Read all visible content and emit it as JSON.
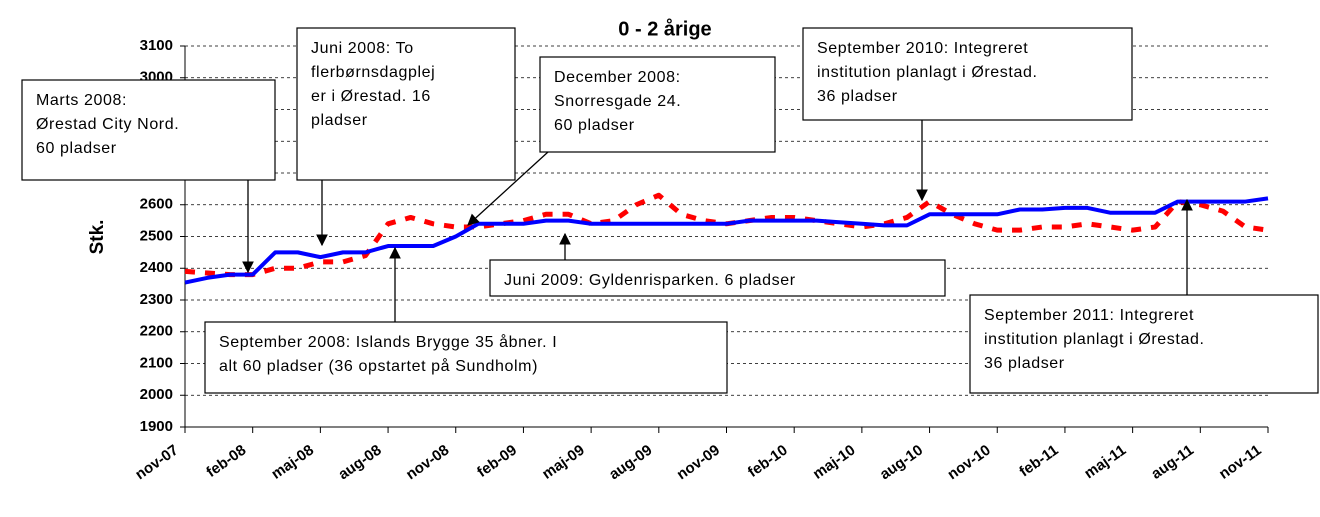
{
  "chart_data": {
    "type": "line",
    "title": "0 - 2 årige",
    "y_label": "Stk.",
    "categories": [
      "nov-07",
      null,
      null,
      "feb-08",
      null,
      null,
      "maj-08",
      null,
      null,
      "aug-08",
      null,
      null,
      "nov-08",
      null,
      null,
      "feb-09",
      null,
      null,
      "maj-09",
      null,
      null,
      "aug-09",
      null,
      null,
      "nov-09",
      null,
      null,
      "feb-10",
      null,
      null,
      "maj-10",
      null,
      null,
      "aug-10",
      null,
      null,
      "nov-10",
      null,
      null,
      "feb-11",
      null,
      null,
      "maj-11",
      null,
      null,
      "aug-11",
      null,
      null,
      "nov-11"
    ],
    "series": [
      {
        "color": "#ff0000",
        "dashed": true,
        "values": [
          2390,
          2385,
          2380,
          2380,
          2400,
          2400,
          2420,
          2420,
          2440,
          2540,
          2560,
          2540,
          2530,
          2530,
          2540,
          2550,
          2570,
          2570,
          2540,
          2550,
          2600,
          2630,
          2570,
          2550,
          2540,
          2550,
          2560,
          2560,
          2550,
          2540,
          2530,
          2540,
          2560,
          2610,
          2570,
          2540,
          2520,
          2520,
          2530,
          2530,
          2540,
          2530,
          2520,
          2530,
          2610,
          2600,
          2580,
          2530,
          2520
        ]
      },
      {
        "color": "#0000ff",
        "dashed": false,
        "values": [
          2355,
          2370,
          2380,
          2380,
          2450,
          2450,
          2435,
          2450,
          2450,
          2470,
          2470,
          2470,
          2500,
          2540,
          2540,
          2540,
          2550,
          2550,
          2540,
          2540,
          2540,
          2540,
          2540,
          2540,
          2540,
          2550,
          2550,
          2550,
          2550,
          2545,
          2540,
          2535,
          2535,
          2570,
          2570,
          2570,
          2570,
          2585,
          2585,
          2590,
          2590,
          2575,
          2575,
          2575,
          2610,
          2610,
          2610,
          2610,
          2620
        ]
      }
    ],
    "ylim": [
      1900,
      3100
    ],
    "yticks": [
      1900,
      2000,
      2100,
      2200,
      2300,
      2400,
      2500,
      2600,
      2700,
      2800,
      2900,
      3000,
      3100
    ],
    "grid": true,
    "annotations": [
      {
        "lines": [
          "Marts 2008:",
          "Ørestad City Nord.",
          "60 pladser"
        ]
      },
      {
        "lines": [
          "Juni 2008: To",
          "flerbørnsdagplej",
          "er i Ørestad. 16",
          "pladser"
        ]
      },
      {
        "lines": [
          "December 2008:",
          "Snorresgade 24.",
          "60 pladser"
        ]
      },
      {
        "lines": [
          "September 2010: Integreret",
          "institution planlagt i Ørestad.",
          "36 pladser"
        ]
      },
      {
        "lines": [
          "Juni 2009: Gyldenrisparken. 6 pladser"
        ]
      },
      {
        "lines": [
          "September 2008: Islands Brygge 35 åbner. I",
          "alt 60 pladser (36 opstartet på Sundholm)"
        ]
      },
      {
        "lines": [
          "September 2011: Integreret",
          "institution planlagt i Ørestad.",
          "36 pladser"
        ]
      }
    ]
  }
}
